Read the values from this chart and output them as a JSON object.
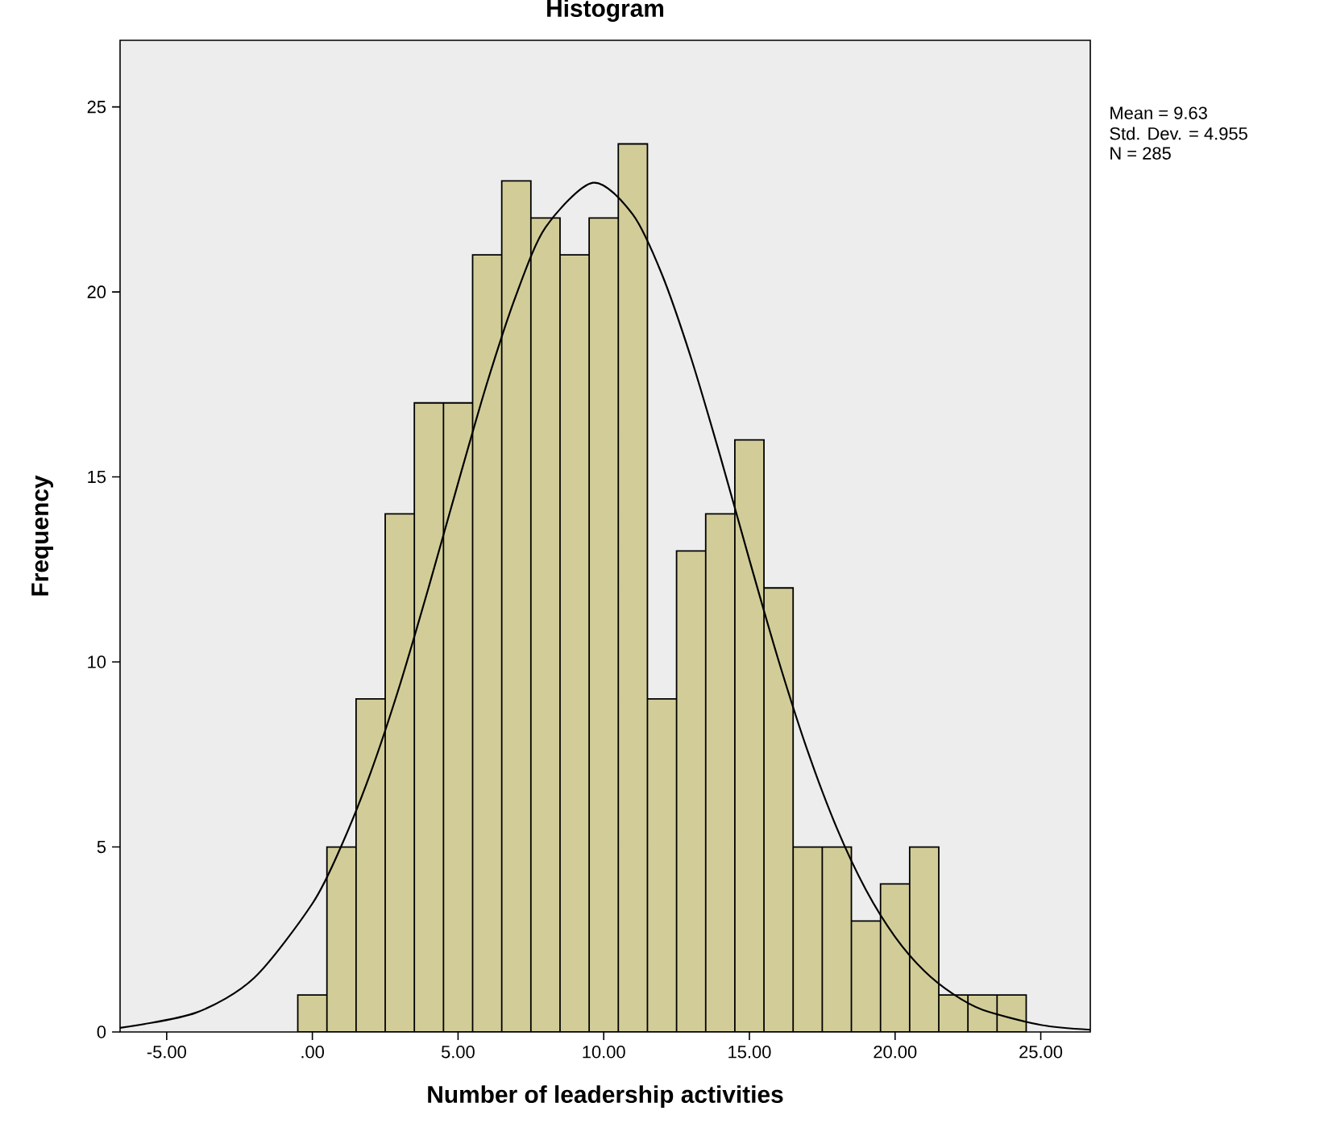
{
  "chart_data": {
    "type": "histogram",
    "title": "Histogram",
    "xlabel": "Number of leadership activities",
    "ylabel": "Frequency",
    "bins": [
      -0.5,
      0.5,
      1.5,
      2.5,
      3.5,
      4.5,
      5.5,
      6.5,
      7.5,
      8.5,
      9.5,
      10.5,
      11.5,
      12.5,
      13.5,
      14.5,
      15.5,
      16.5,
      17.5,
      18.5,
      19.5,
      20.5,
      21.5,
      22.5,
      23.5,
      24.5
    ],
    "values": [
      1,
      5,
      9,
      14,
      17,
      17,
      21,
      23,
      22,
      21,
      22,
      24,
      9,
      13,
      14,
      16,
      12,
      5,
      5,
      3,
      4,
      5,
      1,
      1,
      1
    ],
    "color": "#d2cd98",
    "series": [
      {
        "type": "line",
        "color": "#000000",
        "x": [
          -6.6,
          -4,
          -2,
          0,
          1,
          2,
          3,
          4,
          5,
          6,
          7,
          8,
          9.63,
          11,
          12,
          13,
          14,
          15,
          16,
          17,
          18,
          19,
          20,
          21,
          22,
          23,
          25,
          26.7
        ],
        "values": [
          0.11,
          0.52,
          1.46,
          3.47,
          5.04,
          7.01,
          9.37,
          12.04,
          14.83,
          17.55,
          19.93,
          21.74,
          22.95,
          22.09,
          20.47,
          18.21,
          15.56,
          12.76,
          10.04,
          7.59,
          5.51,
          3.84,
          2.57,
          1.65,
          1.02,
          0.6,
          0.19,
          0.06
        ]
      }
    ],
    "marker": "none",
    "line_style": "solid",
    "xlim": [
      -6.6,
      26.7
    ],
    "ylim": [
      0,
      26.8
    ],
    "xticks": [
      {
        "value": -5,
        "label": "-5.00"
      },
      {
        "value": 0,
        "label": ".00"
      },
      {
        "value": 5,
        "label": "5.00"
      },
      {
        "value": 10,
        "label": "10.00"
      },
      {
        "value": 15,
        "label": "15.00"
      },
      {
        "value": 20,
        "label": "20.00"
      },
      {
        "value": 25,
        "label": "25.00"
      }
    ],
    "yticks": [
      0,
      5,
      10,
      15,
      20,
      25
    ],
    "annotations": [
      "Mean = 9.63",
      "Std. Dev. = 4.955",
      "N = 285"
    ]
  }
}
